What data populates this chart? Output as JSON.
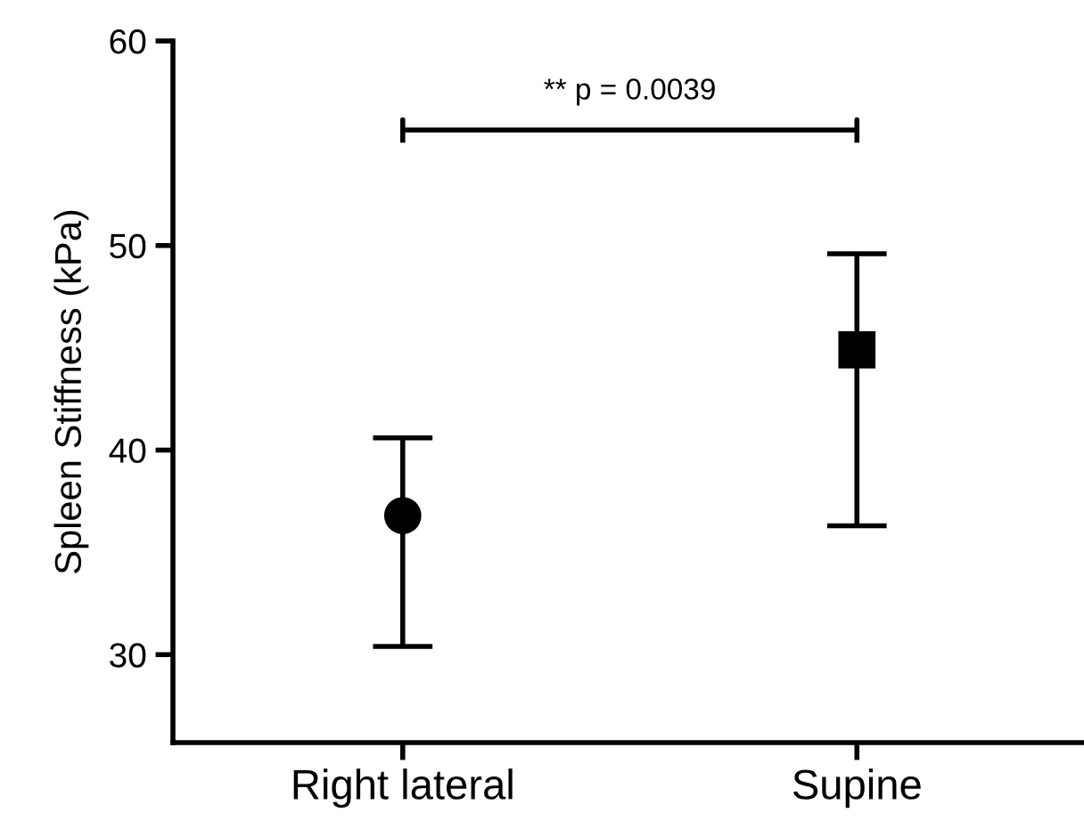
{
  "chart_data": {
    "type": "scatter",
    "ylabel": "Spleen Stiffness (kPa)",
    "categories": [
      "Right lateral",
      "Supine"
    ],
    "series": [
      {
        "color": "#000000",
        "marker": "circle",
        "values": [
          36.8,
          null
        ],
        "errors": [
          [
            30.4,
            40.6
          ],
          null
        ]
      },
      {
        "color": "#000000",
        "marker": "square",
        "values": [
          null,
          44.9
        ],
        "errors": [
          null,
          [
            36.3,
            49.6
          ]
        ]
      }
    ],
    "ylim": [
      25.7,
      60
    ],
    "yticks": [
      30,
      40,
      50,
      60
    ],
    "grid": false,
    "legend": false,
    "annotations": [
      "** p = 0.0039"
    ]
  }
}
